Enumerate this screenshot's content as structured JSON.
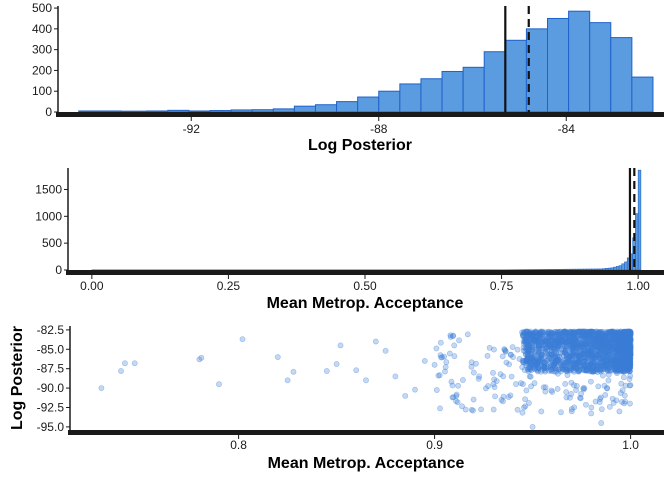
{
  "colors": {
    "bar_fill": "#5b9be0",
    "bar_stroke": "#1f62c9",
    "point": "#3c7fd6",
    "axis": "#1a1a1a"
  },
  "chart_data": [
    {
      "type": "bar",
      "subtype": "histogram",
      "xlabel": "Log Posterior",
      "ylabel": "",
      "xlim": [
        -94.8,
        -82.0
      ],
      "ylim": [
        0,
        510
      ],
      "xticks": [
        "-92",
        "-88",
        "-84"
      ],
      "xtick_values": [
        -92,
        -88,
        -84
      ],
      "yticks": [
        "0",
        "100",
        "200",
        "300",
        "400",
        "500"
      ],
      "ytick_values": [
        0,
        100,
        200,
        300,
        400,
        500
      ],
      "bin_edges": [
        -94.4,
        -93.5,
        -92.95,
        -92.5,
        -92.05,
        -91.6,
        -91.15,
        -90.7,
        -90.25,
        -89.8,
        -89.35,
        -88.9,
        -88.45,
        -88.0,
        -87.55,
        -87.1,
        -86.65,
        -86.2,
        -85.75,
        -85.3,
        -84.85,
        -84.4,
        -83.95,
        -83.5,
        -83.05,
        -82.6,
        -82.15
      ],
      "counts": [
        5,
        4,
        5,
        8,
        5,
        7,
        10,
        11,
        15,
        28,
        35,
        50,
        72,
        100,
        135,
        160,
        195,
        215,
        290,
        345,
        400,
        450,
        485,
        430,
        358,
        168,
        8
      ],
      "vlines": [
        {
          "x": -85.3,
          "style": "solid"
        },
        {
          "x": -84.8,
          "style": "dashed"
        }
      ],
      "grid": false,
      "legend": "none"
    },
    {
      "type": "bar",
      "subtype": "histogram",
      "xlabel": "Mean Metrop. Acceptance",
      "ylabel": "",
      "xlim": [
        -0.04,
        1.04
      ],
      "ylim": [
        0,
        1900
      ],
      "xticks": [
        "0.00",
        "0.25",
        "0.50",
        "0.75",
        "1.00"
      ],
      "xtick_values": [
        0,
        0.25,
        0.5,
        0.75,
        1.0
      ],
      "yticks": [
        "0",
        "500",
        "1000",
        "1500"
      ],
      "ytick_values": [
        0,
        500,
        1000,
        1500
      ],
      "bin_start": 0.0,
      "bin_width": 0.005,
      "count_profile": "low counts from 0.00 to 0.75, rising sharply above 0.93",
      "counts_high": [
        {
          "x": 0.93,
          "count": 20
        },
        {
          "x": 0.95,
          "count": 40
        },
        {
          "x": 0.965,
          "count": 80
        },
        {
          "x": 0.975,
          "count": 150
        },
        {
          "x": 0.985,
          "count": 300
        },
        {
          "x": 0.99,
          "count": 600
        },
        {
          "x": 0.995,
          "count": 1050
        },
        {
          "x": 1.0,
          "count": 1860
        }
      ],
      "vlines": [
        {
          "x": 0.985,
          "style": "solid"
        },
        {
          "x": 0.993,
          "style": "dashed"
        }
      ],
      "grid": false,
      "legend": "none"
    },
    {
      "type": "scatter",
      "xlabel": "Mean Metrop. Acceptance",
      "ylabel": "Log Posterior",
      "xlim": [
        0.715,
        1.015
      ],
      "ylim": [
        -95.4,
        -82.0
      ],
      "xticks": [
        "0.8",
        "0.9",
        "1.0"
      ],
      "xtick_values": [
        0.8,
        0.9,
        1.0
      ],
      "yticks": [
        "-82.5",
        "-85.0",
        "-87.5",
        "-90.0",
        "-92.5",
        "-95.0"
      ],
      "ytick_values": [
        -82.5,
        -85.0,
        -87.5,
        -90.0,
        -92.5,
        -95.0
      ],
      "points_sample": [
        [
          0.73,
          -90.0
        ],
        [
          0.74,
          -87.8
        ],
        [
          0.742,
          -86.8
        ],
        [
          0.747,
          -86.8
        ],
        [
          0.78,
          -86.3
        ],
        [
          0.781,
          -86.1
        ],
        [
          0.79,
          -89.5
        ],
        [
          0.802,
          -83.7
        ],
        [
          0.82,
          -86.0
        ],
        [
          0.825,
          -89.0
        ],
        [
          0.828,
          -87.9
        ],
        [
          0.845,
          -87.8
        ],
        [
          0.85,
          -86.9
        ],
        [
          0.852,
          -84.5
        ],
        [
          0.86,
          -87.7
        ],
        [
          0.865,
          -89.0
        ],
        [
          0.87,
          -84.0
        ],
        [
          0.875,
          -85.2
        ],
        [
          0.88,
          -88.5
        ],
        [
          0.885,
          -91.0
        ],
        [
          0.89,
          -90.2
        ],
        [
          0.895,
          -86.5
        ],
        [
          0.9,
          -87.0
        ],
        [
          0.91,
          -84.5
        ],
        [
          0.92,
          -88.0
        ],
        [
          0.93,
          -89.5
        ],
        [
          0.94,
          -86.0
        ],
        [
          0.95,
          -95.0
        ],
        [
          0.96,
          -90.5
        ],
        [
          0.97,
          -93.0
        ],
        [
          0.98,
          -92.5
        ],
        [
          0.985,
          -94.5
        ]
      ],
      "density_note": "Points densely concentrated for Mean Metrop. Acceptance between 0.95 and 1.0 and Log Posterior between -88 and -82.5",
      "point_alpha": 0.3,
      "grid": false,
      "legend": "none"
    }
  ]
}
